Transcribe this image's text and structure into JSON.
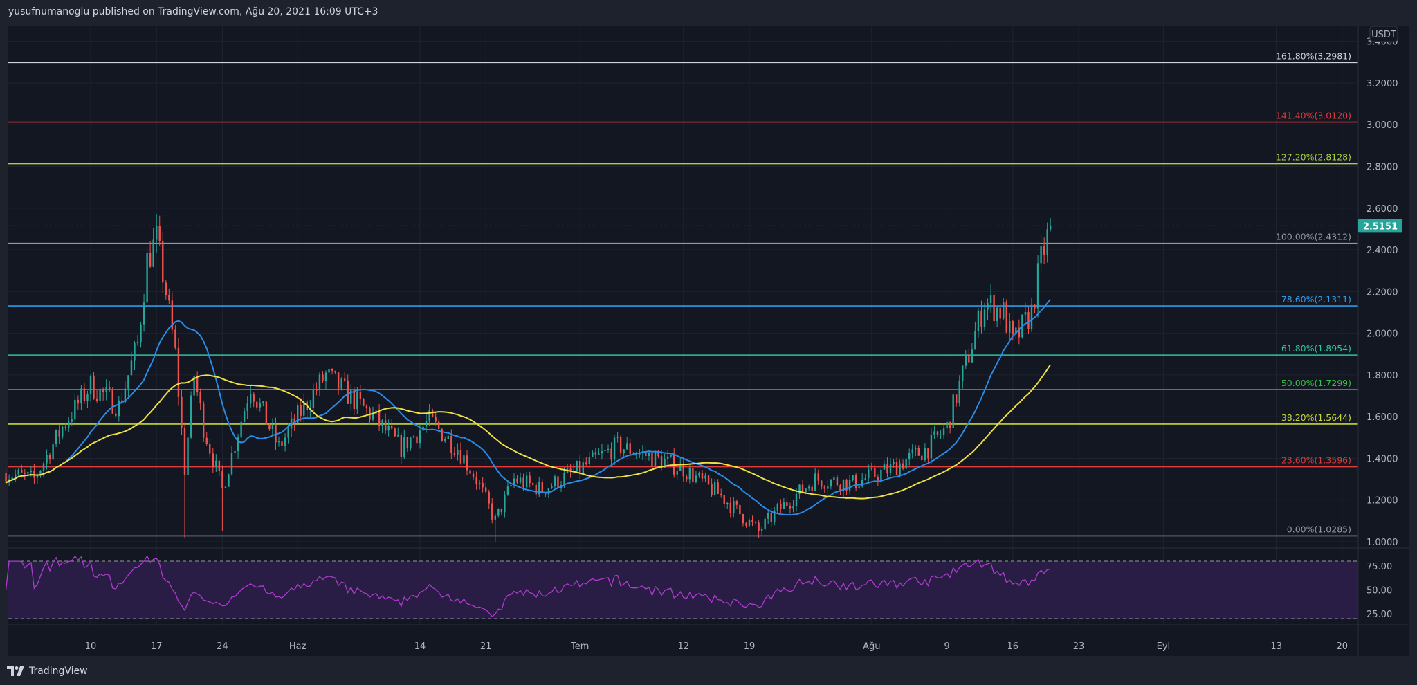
{
  "header": {
    "text": "yusufnumanoglu published on TradingView.com, Ağu 20, 2021 16:09 UTC+3"
  },
  "footer": {
    "logo_text": "TradingView"
  },
  "colors": {
    "bg": "#131722",
    "frame": "#1e222d",
    "up": "#26a69a",
    "down": "#ef5350",
    "ma_fast": "#2a8ce8",
    "ma_slow": "#f0e040",
    "rsi": "#b03ad0",
    "rsi_band": "#2a1d45"
  },
  "chart_data": {
    "type": "candlestick",
    "currency": "USDT",
    "last_price": "2.5151",
    "price_axis": {
      "range": [
        1.0,
        3.4
      ],
      "ticks": [
        "3.4000",
        "3.2000",
        "3.0000",
        "2.8000",
        "2.6000",
        "2.4000",
        "2.2000",
        "2.0000",
        "1.8000",
        "1.6000",
        "1.4000",
        "1.2000",
        "1.0000"
      ]
    },
    "time_axis": {
      "ticks": [
        {
          "label": "10",
          "day": 9
        },
        {
          "label": "17",
          "day": 16
        },
        {
          "label": "24",
          "day": 23
        },
        {
          "label": "Haz",
          "day": 31
        },
        {
          "label": "14",
          "day": 44
        },
        {
          "label": "21",
          "day": 51
        },
        {
          "label": "Tem",
          "day": 61
        },
        {
          "label": "12",
          "day": 72
        },
        {
          "label": "19",
          "day": 79
        },
        {
          "label": "Ağu",
          "day": 92
        },
        {
          "label": "9",
          "day": 100
        },
        {
          "label": "16",
          "day": 107
        },
        {
          "label": "23",
          "day": 114
        },
        {
          "label": "Eyl",
          "day": 123
        },
        {
          "label": "13",
          "day": 135
        },
        {
          "label": "20",
          "day": 142
        }
      ]
    },
    "price_waypoints": [
      {
        "day": 0,
        "close": 1.33
      },
      {
        "day": 3,
        "close": 1.3
      },
      {
        "day": 6,
        "close": 1.55
      },
      {
        "day": 9,
        "close": 1.75
      },
      {
        "day": 12,
        "close": 1.65
      },
      {
        "day": 14,
        "close": 1.95
      },
      {
        "day": 15,
        "close": 2.35
      },
      {
        "day": 16,
        "close": 2.45
      },
      {
        "day": 17,
        "close": 2.2
      },
      {
        "day": 18,
        "close": 1.9
      },
      {
        "day": 19,
        "close": 1.35,
        "low": 1.02
      },
      {
        "day": 20,
        "close": 1.8
      },
      {
        "day": 21,
        "close": 1.55
      },
      {
        "day": 23,
        "close": 1.25,
        "low": 1.05
      },
      {
        "day": 26,
        "close": 1.75
      },
      {
        "day": 29,
        "close": 1.45
      },
      {
        "day": 31,
        "close": 1.6
      },
      {
        "day": 34,
        "close": 1.8
      },
      {
        "day": 36,
        "close": 1.72
      },
      {
        "day": 39,
        "close": 1.6
      },
      {
        "day": 42,
        "close": 1.45
      },
      {
        "day": 45,
        "close": 1.58
      },
      {
        "day": 48,
        "close": 1.45
      },
      {
        "day": 50,
        "close": 1.3
      },
      {
        "day": 52,
        "close": 1.1,
        "low": 1.0
      },
      {
        "day": 54,
        "close": 1.3
      },
      {
        "day": 57,
        "close": 1.25
      },
      {
        "day": 61,
        "close": 1.35
      },
      {
        "day": 65,
        "close": 1.46
      },
      {
        "day": 69,
        "close": 1.4
      },
      {
        "day": 72,
        "close": 1.35
      },
      {
        "day": 76,
        "close": 1.22
      },
      {
        "day": 80,
        "close": 1.05,
        "low": 1.02
      },
      {
        "day": 82,
        "close": 1.15
      },
      {
        "day": 86,
        "close": 1.3
      },
      {
        "day": 90,
        "close": 1.28
      },
      {
        "day": 94,
        "close": 1.35
      },
      {
        "day": 98,
        "close": 1.45
      },
      {
        "day": 100,
        "close": 1.55
      },
      {
        "day": 102,
        "close": 1.85
      },
      {
        "day": 104,
        "close": 2.15
      },
      {
        "day": 106,
        "close": 2.1
      },
      {
        "day": 107,
        "close": 1.95
      },
      {
        "day": 109,
        "close": 2.1
      },
      {
        "day": 110,
        "close": 2.35
      },
      {
        "day": 111,
        "close": 2.5151
      }
    ],
    "indicators": [
      {
        "name": "MA fast",
        "type": "moving-average",
        "period_bars": 20
      },
      {
        "name": "MA slow",
        "type": "moving-average",
        "period_bars": 50
      },
      {
        "name": "RSI",
        "period_bars": 14,
        "bands": [
          80,
          20
        ],
        "ticks": [
          "75.00",
          "50.00",
          "25.00"
        ]
      }
    ],
    "fib_levels": [
      {
        "label": "161.80%(3.2981)",
        "value": 3.2981,
        "color": "#d1d4dc"
      },
      {
        "label": "141.40%(3.0120)",
        "value": 3.012,
        "color": "#e03a3a"
      },
      {
        "label": "127.20%(2.8128)",
        "value": 2.8128,
        "color": "#a8d040"
      },
      {
        "label": "100.00%(2.4312)",
        "value": 2.4312,
        "color": "#9598a1"
      },
      {
        "label": "78.60%(2.1311)",
        "value": 2.1311,
        "color": "#2e9be8"
      },
      {
        "label": "61.80%(1.8954)",
        "value": 1.8954,
        "color": "#2ec4a0"
      },
      {
        "label": "50.00%(1.7299)",
        "value": 1.7299,
        "color": "#34c040"
      },
      {
        "label": "38.20%(1.5644)",
        "value": 1.5644,
        "color": "#c8d832"
      },
      {
        "label": "23.60%(1.3596)",
        "value": 1.3596,
        "color": "#e03a3a"
      },
      {
        "label": "0.00%(1.0285)",
        "value": 1.0285,
        "color": "#9598a1"
      }
    ]
  }
}
